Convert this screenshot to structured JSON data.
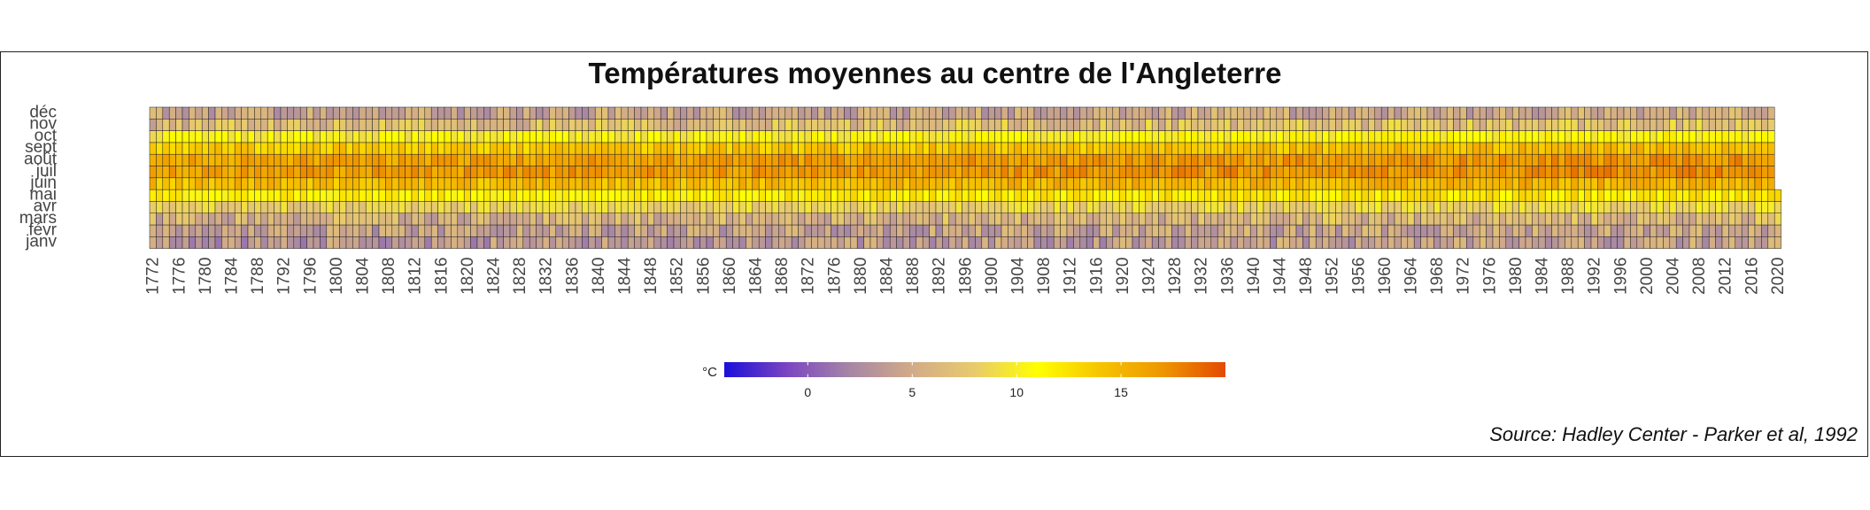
{
  "chart_data": {
    "type": "heatmap",
    "title": "Températures moyennes au centre de l'Angleterre",
    "caption": "Source: Hadley Center - Parker et al, 1992",
    "x_range": [
      1772,
      2020
    ],
    "x_tick_labels": [
      "1772",
      "1776",
      "1780",
      "1784",
      "1788",
      "1792",
      "1796",
      "1800",
      "1804",
      "1808",
      "1812",
      "1816",
      "1820",
      "1824",
      "1828",
      "1832",
      "1836",
      "1840",
      "1844",
      "1848",
      "1852",
      "1856",
      "1860",
      "1864",
      "1868",
      "1872",
      "1876",
      "1880",
      "1884",
      "1888",
      "1892",
      "1896",
      "1900",
      "1904",
      "1908",
      "1912",
      "1916",
      "1920",
      "1924",
      "1928",
      "1932",
      "1936",
      "1940",
      "1944",
      "1948",
      "1952",
      "1956",
      "1960",
      "1964",
      "1968",
      "1972",
      "1976",
      "1980",
      "1984",
      "1988",
      "1992",
      "1996",
      "2000",
      "2004",
      "2008",
      "2012",
      "2016",
      "2020"
    ],
    "y_categories": [
      "janv",
      "févr",
      "mars",
      "avr",
      "mai",
      "juin",
      "juil",
      "août",
      "sept",
      "oct",
      "nov",
      "déc"
    ],
    "monthly_mean_celsius": [
      3.5,
      4.0,
      5.5,
      8.0,
      11.3,
      14.4,
      16.3,
      16.0,
      13.6,
      10.0,
      6.3,
      4.3
    ],
    "last_year_available_months": 5,
    "legend": {
      "title": "°C",
      "ticks": [
        0,
        5,
        10,
        15
      ],
      "range": [
        -4,
        20
      ],
      "colors": [
        "#1b0fd8",
        "#7b45c1",
        "#a586a5",
        "#d2ab88",
        "#e8cb6c",
        "#ffff00",
        "#f6c400",
        "#ee9600",
        "#e34a02"
      ]
    },
    "grid": false
  }
}
